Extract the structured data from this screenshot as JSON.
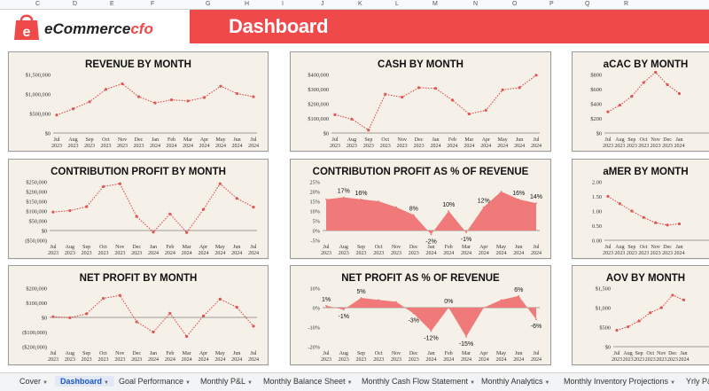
{
  "column_headers": [
    "C",
    "D",
    "E",
    "F",
    "G",
    "H",
    "I",
    "J",
    "K",
    "L",
    "M",
    "N",
    "O",
    "P",
    "Q",
    "R"
  ],
  "logo": {
    "prefix": "eCommerce",
    "suffix": "cfo",
    "mark_letter": "e"
  },
  "title": "Dashboard",
  "colors": {
    "accent": "#f0494a",
    "line": "#e03b3b",
    "fill": "#f07a7a",
    "panel": "#f5f1e8",
    "dot": "#e05555"
  },
  "months": [
    "Jul",
    "Aug",
    "Sep",
    "Oct",
    "Nov",
    "Dec",
    "Jan",
    "Feb",
    "Mar",
    "Apr",
    "May",
    "Jun",
    "Jul"
  ],
  "years": [
    "2023",
    "2023",
    "2023",
    "2023",
    "2023",
    "2023",
    "2024",
    "2024",
    "2024",
    "2024",
    "2024",
    "2024",
    "2024"
  ],
  "chart_data": [
    {
      "id": "revenue",
      "type": "line",
      "title": "REVENUE BY MONTH",
      "yticks": [
        "$1,500,000",
        "$1,000,000",
        "$500,000",
        "$0"
      ],
      "ylim": [
        0,
        1500000
      ],
      "values": [
        460000,
        620000,
        800000,
        1120000,
        1260000,
        930000,
        770000,
        850000,
        820000,
        910000,
        1200000,
        1010000,
        930000
      ]
    },
    {
      "id": "cash",
      "type": "line",
      "title": "CASH BY MONTH",
      "yticks": [
        "$400,000",
        "$300,000",
        "$200,000",
        "$100,000",
        "$0"
      ],
      "ylim": [
        0,
        400000
      ],
      "values": [
        125000,
        95000,
        20000,
        265000,
        245000,
        310000,
        305000,
        225000,
        130000,
        155000,
        295000,
        310000,
        395000
      ]
    },
    {
      "id": "acac",
      "type": "line",
      "title": "aCAC BY MONTH",
      "yticks": [
        "$800",
        "$600",
        "$400",
        "$200",
        "$0"
      ],
      "ylim": [
        0,
        800
      ],
      "values": [
        290,
        380,
        500,
        690,
        830,
        660,
        540
      ]
    },
    {
      "id": "contribution",
      "type": "line",
      "title": "CONTRIBUTION PROFIT BY MONTH",
      "yticks": [
        "$250,000",
        "$200,000",
        "$150,000",
        "$100,000",
        "$50,000",
        "$0",
        "($50,000)"
      ],
      "ylim": [
        -50000,
        250000
      ],
      "values": [
        95000,
        102000,
        122000,
        225000,
        240000,
        72000,
        -8000,
        85000,
        -10000,
        108000,
        240000,
        165000,
        120000
      ]
    },
    {
      "id": "contribution_pct",
      "type": "area",
      "title": "CONTRIBUTION PROFIT AS % OF REVENUE",
      "yticks": [
        "25%",
        "20%",
        "15%",
        "10%",
        "5%",
        "0%",
        "-5%"
      ],
      "ylim": [
        -5,
        25
      ],
      "values": [
        16,
        17,
        16,
        15,
        12,
        8,
        -2,
        10,
        -1,
        12,
        20,
        16,
        14
      ],
      "labels": [
        "",
        "17%",
        "16%",
        "",
        "",
        "8%",
        "-2%",
        "10%",
        "-1%",
        "12%",
        "",
        "16%",
        "14%"
      ]
    },
    {
      "id": "amer",
      "type": "line",
      "title": "aMER BY MONTH",
      "yticks": [
        "2.00",
        "1.50",
        "1.00",
        "0.50",
        "0.00"
      ],
      "ylim": [
        0,
        2
      ],
      "values": [
        1.5,
        1.25,
        1.0,
        0.78,
        0.6,
        0.52,
        0.56
      ]
    },
    {
      "id": "net",
      "type": "line",
      "title": "NET PROFIT BY MONTH",
      "yticks": [
        "$200,000",
        "$100,000",
        "$0",
        "($100,000)",
        "($200,000)"
      ],
      "ylim": [
        -200000,
        200000
      ],
      "values": [
        5000,
        -2000,
        25000,
        130000,
        150000,
        -30000,
        -100000,
        28000,
        -130000,
        10000,
        125000,
        70000,
        -60000
      ]
    },
    {
      "id": "net_pct",
      "type": "area",
      "title": "NET PROFIT AS % OF REVENUE",
      "yticks": [
        "10%",
        "0%",
        "-10%",
        "-20%"
      ],
      "ylim": [
        -20,
        10
      ],
      "values": [
        1,
        -1,
        5,
        4,
        3,
        -3,
        -12,
        0,
        -15,
        0,
        4,
        6,
        -6
      ],
      "labels": [
        "1%",
        "-1%",
        "5%",
        "",
        "",
        "-3%",
        "-12%",
        "0%",
        "-15%",
        "",
        "",
        "6%",
        "-6%"
      ]
    },
    {
      "id": "aov",
      "type": "line",
      "title": "AOV BY MONTH",
      "yticks": [
        "$1,500",
        "$1,000",
        "$500",
        "$0"
      ],
      "ylim": [
        0,
        1500
      ],
      "values": [
        420,
        510,
        660,
        870,
        1000,
        1320,
        1200
      ]
    }
  ],
  "tabs": [
    {
      "label": "Cover",
      "active": false
    },
    {
      "label": "Dashboard",
      "active": true
    },
    {
      "label": "Goal Performance",
      "active": false
    },
    {
      "label": "Monthly P&L",
      "active": false
    },
    {
      "label": "Monthly Balance Sheet",
      "active": false
    },
    {
      "label": "Monthly Cash Flow Statement",
      "active": false
    },
    {
      "label": "Monthly Analytics",
      "active": false
    },
    {
      "label": "Monthly Inventory Projections",
      "active": false
    },
    {
      "label": "Yrly P&L",
      "active": false
    }
  ]
}
